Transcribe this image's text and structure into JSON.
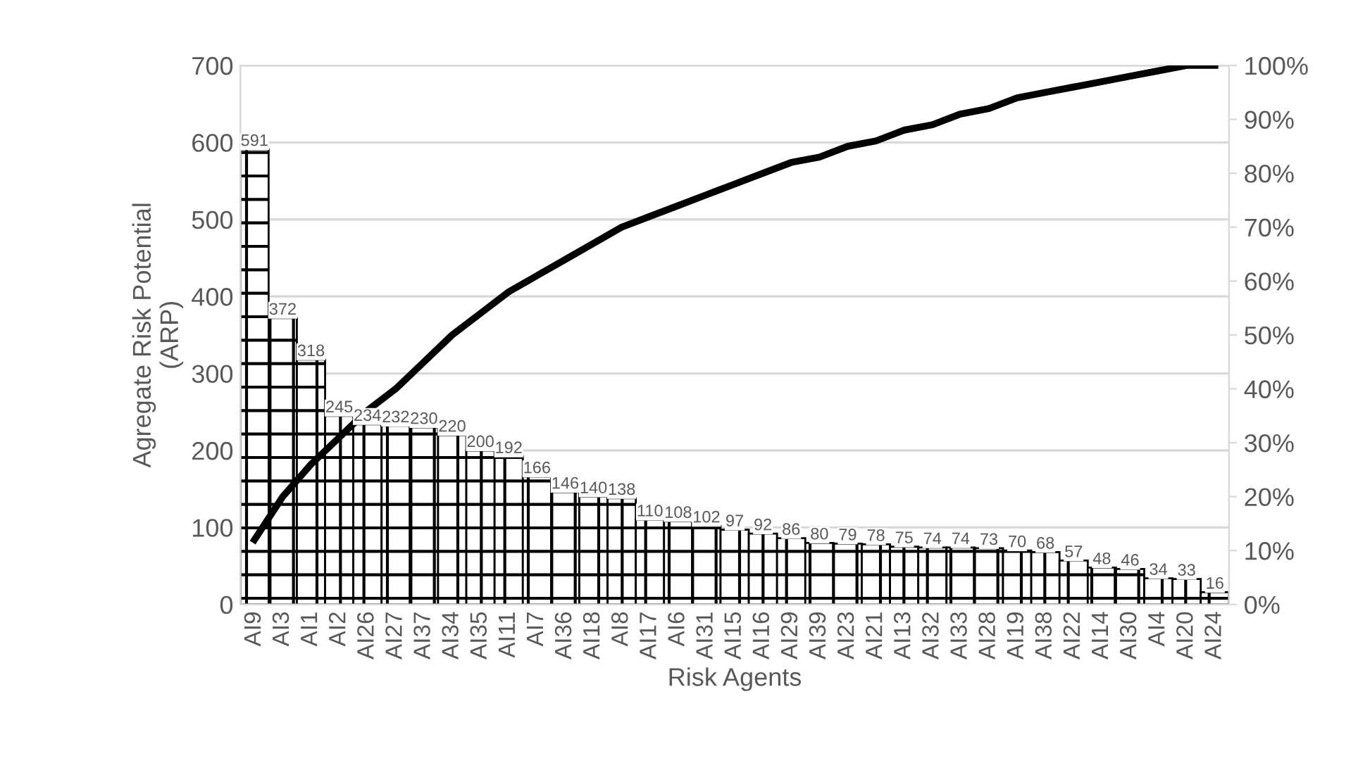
{
  "chart_data": {
    "type": "bar",
    "xlabel": "Risk Agents",
    "ylabel": "Agregate Risk Potential\n(ARP)",
    "categories": [
      "AI9",
      "AI3",
      "AI1",
      "AI2",
      "AI26",
      "AI27",
      "AI37",
      "AI34",
      "AI35",
      "AI11",
      "AI7",
      "AI36",
      "AI18",
      "AI8",
      "AI17",
      "AI6",
      "AI31",
      "AI15",
      "AI16",
      "AI29",
      "AI39",
      "AI23",
      "AI21",
      "AI13",
      "AI32",
      "AI33",
      "AI28",
      "AI19",
      "AI38",
      "AI22",
      "AI14",
      "AI30",
      "AI4",
      "AI20",
      "AI24"
    ],
    "series": [
      {
        "color": "#000000",
        "data_labels": true,
        "values": [
          591,
          372,
          318,
          245,
          234,
          232,
          230,
          220,
          200,
          192,
          166,
          146,
          140,
          138,
          110,
          108,
          102,
          97,
          92,
          86,
          80,
          79,
          78,
          75,
          74,
          74,
          73,
          70,
          68,
          57,
          48,
          46,
          34,
          33,
          16
        ]
      },
      {
        "type": "line",
        "axis": "y2",
        "color": "#000000",
        "marker": "none",
        "line_style": "solid",
        "values": [
          12,
          20,
          26,
          31,
          36,
          40,
          45,
          50,
          54,
          58,
          61,
          64,
          67,
          70,
          72,
          74,
          76,
          78,
          80,
          82,
          83,
          85,
          86,
          88,
          89,
          91,
          92,
          94,
          95,
          96,
          97,
          98,
          99,
          100,
          100
        ]
      }
    ],
    "ylim": [
      0,
      700
    ],
    "yticks": [
      0,
      100,
      200,
      300,
      400,
      500,
      600,
      700
    ],
    "y2lim": [
      0,
      100
    ],
    "y2ticks": [
      {
        "value": 0,
        "label": "0%"
      },
      {
        "value": 10,
        "label": "10%"
      },
      {
        "value": 20,
        "label": "20%"
      },
      {
        "value": 30,
        "label": "30%"
      },
      {
        "value": 40,
        "label": "40%"
      },
      {
        "value": 50,
        "label": "50%"
      },
      {
        "value": 60,
        "label": "60%"
      },
      {
        "value": 70,
        "label": "70%"
      },
      {
        "value": 80,
        "label": "80%"
      },
      {
        "value": 90,
        "label": "90%"
      },
      {
        "value": 100,
        "label": "100%"
      }
    ],
    "grid": "y",
    "legend": false
  }
}
